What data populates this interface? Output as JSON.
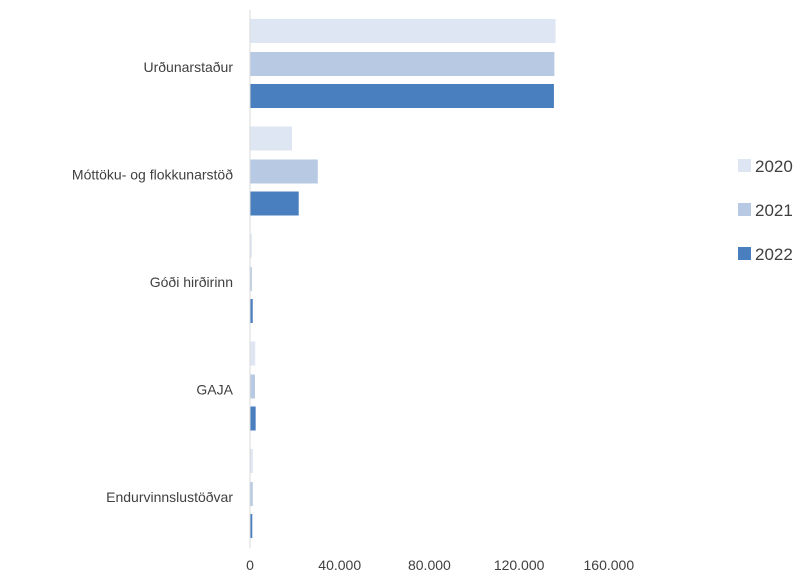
{
  "chart_data": {
    "type": "bar",
    "orientation": "horizontal",
    "title": "",
    "xlabel": "",
    "ylabel": "",
    "categories": [
      "Urðunarstaður",
      "Móttöku- og flokkunarstöð",
      "Góði hirðirinn",
      "GAJA",
      "Endurvinnslustöðvar"
    ],
    "series": [
      {
        "name": "2020",
        "color": "#dde6f2",
        "values": [
          136000,
          18500,
          600,
          2100,
          1000
        ]
      },
      {
        "name": "2021",
        "color": "#b7c9e3",
        "values": [
          135500,
          30000,
          600,
          2000,
          1000
        ]
      },
      {
        "name": "2022",
        "color": "#4a7fbf",
        "values": [
          135300,
          21500,
          1000,
          2300,
          800
        ]
      }
    ],
    "xlim": [
      0,
      160000
    ],
    "ticks": [
      0,
      40000,
      80000,
      120000,
      160000
    ],
    "tick_labels": [
      "0",
      "40.000",
      "80.000",
      "120.000",
      "160.000"
    ],
    "grid": false,
    "legend_position": "right"
  }
}
